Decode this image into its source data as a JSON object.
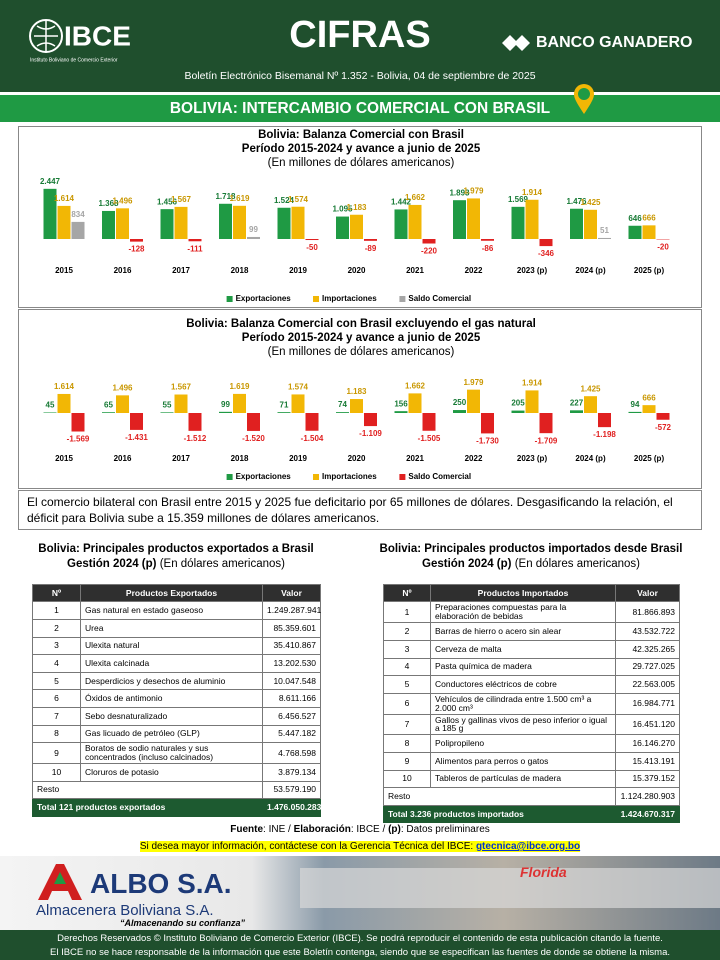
{
  "header": {
    "logo": "IBCE",
    "logo_caption": "Instituto Boliviano de Comercio Exterior",
    "title": "CIFRAS",
    "sponsor": "BANCO GANADERO",
    "bulletin": "Boletín Electrónico Bisemanal Nº 1.352 - Bolivia, 04 de septiembre de 2025"
  },
  "banner": "BOLIVIA: INTERCAMBIO COMERCIAL CON BRASIL",
  "chart_data": [
    {
      "type": "bar",
      "title": "Bolivia: Balanza Comercial con Brasil",
      "subtitle": "Período 2015-2024 y avance a junio de 2025",
      "unit_note": "(En millones de dólares americanos)",
      "categories": [
        "2015",
        "2016",
        "2017",
        "2018",
        "2019",
        "2020",
        "2021",
        "2022",
        "2023 (p)",
        "2024 (p)",
        "2025 (p)"
      ],
      "series": [
        {
          "name": "Exportaciones",
          "color": "#1f9a44",
          "values": [
            2447,
            1368,
            1456,
            1718,
            1524,
            1095,
            1442,
            1893,
            1569,
            1476,
            646
          ],
          "value_labels": [
            "2.447",
            "1.368",
            "1.456",
            "1.718",
            "1.524",
            "1.095",
            "1.442",
            "1.893",
            "1.569",
            "1.476",
            "646"
          ]
        },
        {
          "name": "Importaciones",
          "color": "#f2b705",
          "values": [
            1614,
            1496,
            1567,
            1619,
            1574,
            1183,
            1662,
            1979,
            1914,
            1425,
            666
          ],
          "value_labels": [
            "1.614",
            "1.496",
            "1.567",
            "1.619",
            "1.574",
            "1.183",
            "1.662",
            "1.979",
            "1.914",
            "1.425",
            "666"
          ]
        },
        {
          "name": "Saldo Comercial",
          "color": "#a6a6a6",
          "negative_color": "#e02020",
          "values": [
            834,
            -128,
            -111,
            99,
            -50,
            -89,
            -220,
            -86,
            -346,
            51,
            -20
          ]
        }
      ],
      "legend": "bottom"
    },
    {
      "type": "bar",
      "title": "Bolivia: Balanza Comercial con Brasil excluyendo el gas natural",
      "subtitle": "Período 2015-2024 y avance a junio de 2025",
      "unit_note": "(En millones de dólares americanos)",
      "categories": [
        "2015",
        "2016",
        "2017",
        "2018",
        "2019",
        "2020",
        "2021",
        "2022",
        "2023 (p)",
        "2024 (p)",
        "2025 (p)"
      ],
      "series": [
        {
          "name": "Exportaciones",
          "color": "#1f9a44",
          "values": [
            45,
            65,
            55,
            99,
            71,
            74,
            156,
            250,
            205,
            227,
            94
          ]
        },
        {
          "name": "Importaciones",
          "color": "#f2b705",
          "values": [
            1614,
            1496,
            1567,
            1619,
            1574,
            1183,
            1662,
            1979,
            1914,
            1425,
            666
          ],
          "value_labels": [
            "1.614",
            "1.496",
            "1.567",
            "1.619",
            "1.574",
            "1.183",
            "1.662",
            "1.979",
            "1.914",
            "1.425",
            "666"
          ]
        },
        {
          "name": "Saldo Comercial",
          "color": "#e02020",
          "values": [
            -1569,
            -1431,
            -1512,
            -1520,
            -1504,
            -1109,
            -1505,
            -1730,
            -1709,
            -1198,
            -572
          ],
          "value_labels": [
            "-1.569",
            "-1.431",
            "-1.512",
            "-1.520",
            "-1.504",
            "-1.109",
            "-1.505",
            "-1.730",
            "-1.709",
            "-1.198",
            "-572"
          ]
        }
      ],
      "legend": "bottom"
    }
  ],
  "summary": "El comercio bilateral con Brasil entre 2015 y 2025 fue deficitario por 65 millones de dólares. Desgasificando la relación, el déficit para Bolivia sube a 15.359 millones de dólares americanos.",
  "tables": [
    {
      "title": "Bolivia: Principales productos exportados a Brasil",
      "period": "Gestión 2024 (p)",
      "unit": "(En dólares americanos)",
      "columns": [
        "Nº",
        "Productos Exportados",
        "Valor"
      ],
      "rows": [
        [
          "1",
          "Gas natural en estado gaseoso",
          "1.249.287.941"
        ],
        [
          "2",
          "Urea",
          "85.359.601"
        ],
        [
          "3",
          "Ulexita natural",
          "35.410.867"
        ],
        [
          "4",
          "Ulexita calcinada",
          "13.202.530"
        ],
        [
          "5",
          "Desperdicios y desechos de aluminio",
          "10.047.548"
        ],
        [
          "6",
          "Óxidos de antimonio",
          "8.611.166"
        ],
        [
          "7",
          "Sebo desnaturalizado",
          "6.456.527"
        ],
        [
          "8",
          "Gas licuado de petróleo (GLP)",
          "5.447.182"
        ],
        [
          "9",
          "Boratos de sodio naturales y sus concentrados (incluso calcinados)",
          "4.768.598"
        ],
        [
          "10",
          "Cloruros de potasio",
          "3.879.134"
        ]
      ],
      "rest": [
        "Resto",
        "53.579.190"
      ],
      "total": [
        "Total 121 productos exportados",
        "1.476.050.283"
      ]
    },
    {
      "title": "Bolivia: Principales productos importados desde Brasil",
      "period": "Gestión 2024 (p)",
      "unit": "(En dólares americanos)",
      "columns": [
        "Nº",
        "Productos Importados",
        "Valor"
      ],
      "rows": [
        [
          "1",
          "Preparaciones compuestas para la elaboración de bebidas",
          "81.866.893"
        ],
        [
          "2",
          "Barras de hierro o acero sin alear",
          "43.532.722"
        ],
        [
          "3",
          "Cerveza de malta",
          "42.325.265"
        ],
        [
          "4",
          "Pasta química de madera",
          "29.727.025"
        ],
        [
          "5",
          "Conductores eléctricos de cobre",
          "22.563.005"
        ],
        [
          "6",
          "Vehículos de cilindrada entre 1.500 cm³ a 2.000 cm³",
          "16.984.771"
        ],
        [
          "7",
          "Gallos y gallinas vivos de peso inferior o igual a 185 g",
          "16.451.120"
        ],
        [
          "8",
          "Polipropileno",
          "16.146.270"
        ],
        [
          "9",
          "Alimentos para perros o gatos",
          "15.413.191"
        ],
        [
          "10",
          "Tableros de partículas de madera",
          "15.379.152"
        ]
      ],
      "rest": [
        "Resto",
        "1.124.280.903"
      ],
      "total": [
        "Total 3.236 productos importados",
        "1.424.670.317"
      ]
    }
  ],
  "source": {
    "label1": "Fuente",
    "text1": ": INE / ",
    "label2": "Elaboración",
    "text2": ": IBCE / ",
    "label3": "(p)",
    "text3": ": Datos preliminares"
  },
  "contact": {
    "text": "Si desea mayor información, contáctese con la Gerencia Técnica del IBCE:",
    "email": "gtecnica@ibce.org.bo"
  },
  "ad": {
    "brand": "ALBO S.A.",
    "company": "Almacenera Boliviana S.A.",
    "slogan": "“Almacenando su confianza”",
    "sign": "Florida"
  },
  "footer": [
    "Derechos Reservados © Instituto Boliviano de Comercio Exterior (IBCE). Se podrá reproducir el contenido de esta publicación citando la fuente.",
    "El IBCE no se hace responsable de la información que este Boletín contenga, siendo que se especifican las fuentes de donde se obtiene la misma."
  ]
}
